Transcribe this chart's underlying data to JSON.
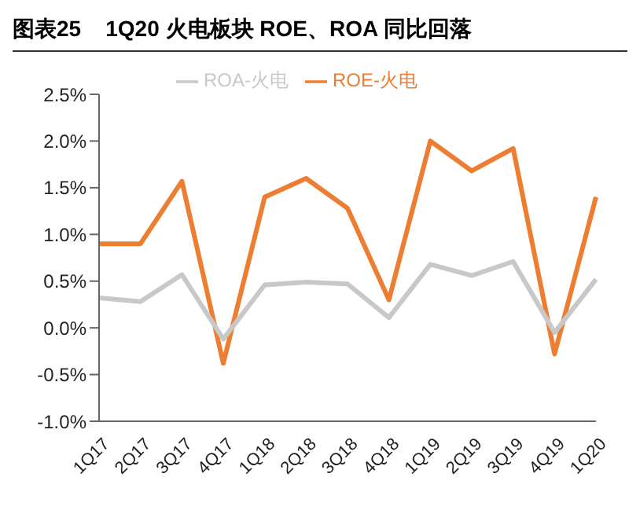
{
  "chart_data": {
    "type": "line",
    "title": "图表25    1Q20 火电板块 ROE、ROA 同比回落",
    "categories": [
      "1Q17",
      "2Q17",
      "3Q17",
      "4Q17",
      "1Q18",
      "2Q18",
      "3Q18",
      "4Q18",
      "1Q19",
      "2Q19",
      "3Q19",
      "4Q19",
      "1Q20"
    ],
    "series": [
      {
        "name": "ROE-火电",
        "color": "#ed7d31",
        "values": [
          0.9,
          0.9,
          1.57,
          -0.38,
          1.4,
          1.6,
          1.28,
          0.3,
          2.0,
          1.68,
          1.92,
          -0.28,
          1.4
        ]
      },
      {
        "name": "ROA-火电",
        "color": "#c8c8c8",
        "values": [
          0.32,
          0.28,
          0.57,
          -0.12,
          0.46,
          0.49,
          0.47,
          0.11,
          0.68,
          0.56,
          0.71,
          -0.05,
          0.52
        ]
      }
    ],
    "ylim": [
      -1.0,
      2.5
    ],
    "yticks": [
      {
        "value": -1.0,
        "label": "-1.0%"
      },
      {
        "value": -0.5,
        "label": "-0.5%"
      },
      {
        "value": 0.0,
        "label": "0.0%"
      },
      {
        "value": 0.5,
        "label": "0.5%"
      },
      {
        "value": 1.0,
        "label": "1.0%"
      },
      {
        "value": 1.5,
        "label": "1.5%"
      },
      {
        "value": 2.0,
        "label": "2.0%"
      },
      {
        "value": 2.5,
        "label": "2.5%"
      }
    ],
    "grid": false,
    "legend": "top",
    "marker": "none",
    "line_style": "solid"
  }
}
